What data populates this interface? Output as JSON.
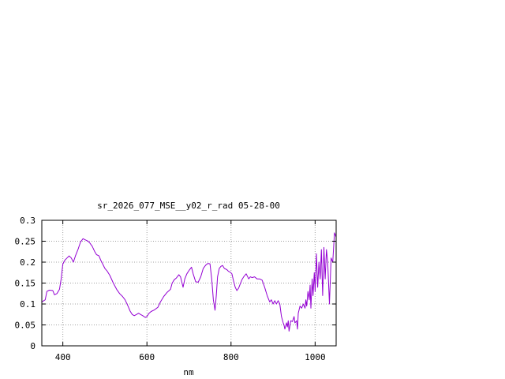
{
  "chart_data": {
    "type": "line",
    "title": "sr_2026_077_MSE__y02_r_rad 05-28-00",
    "xlabel": "nm",
    "ylabel": "",
    "xlim": [
      350,
      1050
    ],
    "ylim": [
      0,
      0.3
    ],
    "grid": true,
    "legend": "none",
    "x_ticks": [
      400,
      600,
      800,
      1000
    ],
    "x_tick_labels": [
      "400",
      "600",
      "800",
      "1000"
    ],
    "y_ticks": [
      0,
      0.05,
      0.1,
      0.15,
      0.2,
      0.25,
      0.3
    ],
    "y_tick_labels": [
      "0",
      "0.05",
      "0.1",
      "0.15",
      "0.2",
      "0.25",
      "0.3"
    ],
    "colors": {
      "series": "#9400d3",
      "grid": "#a0a0a0",
      "axis": "#000000"
    },
    "series": [
      {
        "x": [
          350,
          358,
          362,
          368,
          376,
          380,
          386,
          392,
          396,
          400,
          405,
          410,
          415,
          420,
          425,
          430,
          436,
          442,
          448,
          452,
          456,
          460,
          464,
          470,
          476,
          480,
          486,
          490,
          495,
          500,
          506,
          512,
          520,
          528,
          535,
          542,
          548,
          555,
          560,
          565,
          570,
          575,
          580,
          585,
          590,
          596,
          600,
          605,
          610,
          618,
          626,
          632,
          640,
          648,
          656,
          660,
          665,
          670,
          676,
          680,
          686,
          690,
          695,
          700,
          706,
          710,
          716,
          722,
          728,
          734,
          740,
          745,
          750,
          754,
          758,
          762,
          765,
          768,
          772,
          776,
          780,
          784,
          790,
          794,
          798,
          802,
          806,
          810,
          814,
          818,
          822,
          826,
          830,
          836,
          842,
          846,
          850,
          856,
          862,
          868,
          874,
          880,
          886,
          892,
          896,
          900,
          904,
          908,
          912,
          916,
          920,
          924,
          926,
          928,
          932,
          934,
          936,
          938,
          942,
          946,
          950,
          952,
          956,
          958,
          960,
          964,
          968,
          972,
          976,
          978,
          980,
          983,
          986,
          988,
          990,
          993,
          995,
          998,
          1000,
          1003,
          1006,
          1009,
          1012,
          1015,
          1018,
          1021,
          1024,
          1027,
          1030,
          1034,
          1038,
          1042,
          1046,
          1050
        ],
        "y": [
          0.105,
          0.11,
          0.13,
          0.133,
          0.132,
          0.122,
          0.125,
          0.135,
          0.16,
          0.195,
          0.205,
          0.21,
          0.215,
          0.21,
          0.2,
          0.215,
          0.23,
          0.248,
          0.256,
          0.254,
          0.252,
          0.25,
          0.246,
          0.238,
          0.225,
          0.218,
          0.215,
          0.205,
          0.195,
          0.185,
          0.178,
          0.168,
          0.15,
          0.135,
          0.125,
          0.118,
          0.11,
          0.095,
          0.083,
          0.075,
          0.072,
          0.075,
          0.078,
          0.075,
          0.072,
          0.068,
          0.07,
          0.078,
          0.082,
          0.086,
          0.092,
          0.105,
          0.118,
          0.128,
          0.135,
          0.15,
          0.158,
          0.162,
          0.17,
          0.165,
          0.14,
          0.16,
          0.172,
          0.18,
          0.188,
          0.172,
          0.153,
          0.152,
          0.165,
          0.185,
          0.193,
          0.197,
          0.196,
          0.16,
          0.11,
          0.085,
          0.12,
          0.165,
          0.185,
          0.19,
          0.192,
          0.185,
          0.182,
          0.178,
          0.176,
          0.172,
          0.155,
          0.14,
          0.132,
          0.138,
          0.148,
          0.158,
          0.165,
          0.172,
          0.16,
          0.165,
          0.163,
          0.165,
          0.16,
          0.16,
          0.157,
          0.14,
          0.12,
          0.105,
          0.11,
          0.1,
          0.108,
          0.1,
          0.108,
          0.1,
          0.07,
          0.055,
          0.05,
          0.04,
          0.055,
          0.045,
          0.06,
          0.035,
          0.06,
          0.058,
          0.07,
          0.055,
          0.06,
          0.04,
          0.078,
          0.095,
          0.09,
          0.1,
          0.09,
          0.11,
          0.095,
          0.13,
          0.11,
          0.145,
          0.09,
          0.16,
          0.12,
          0.175,
          0.13,
          0.22,
          0.14,
          0.2,
          0.16,
          0.23,
          0.12,
          0.235,
          0.16,
          0.23,
          0.2,
          0.1,
          0.21,
          0.2,
          0.27,
          0.26
        ]
      }
    ]
  }
}
